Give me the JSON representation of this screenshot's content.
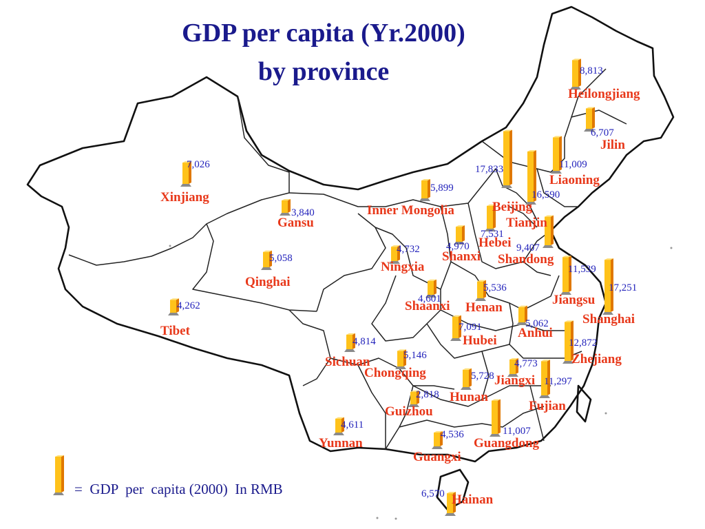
{
  "title_line1": "GDP per capita (Yr.2000)",
  "title_line2": "by province",
  "legend_text": "=  GDP  per  capita (2000)  In RMB",
  "colors": {
    "title": "#1a1a8c",
    "province_label": "#e8381a",
    "value_label": "#2222bb",
    "bar_light": "#ffc21a",
    "bar_dark": "#e07800",
    "border": "#111111"
  },
  "provinces": [
    {
      "key": "heilongjiang",
      "name": "Heilongjiang",
      "value": "8,813"
    },
    {
      "key": "jilin",
      "name": "Jilin",
      "value": "6,707"
    },
    {
      "key": "liaoning",
      "name": "Liaoning",
      "value": "11,009"
    },
    {
      "key": "beijing",
      "name": "Beijing",
      "value": "17,833"
    },
    {
      "key": "tianjin",
      "name": "Tianjin",
      "value": "16,590"
    },
    {
      "key": "hebei",
      "name": "Hebei",
      "value": "7,531"
    },
    {
      "key": "shanxi",
      "name": "Shanxi",
      "value": "4,970"
    },
    {
      "key": "shandong",
      "name": "Shandong",
      "value": "9,407"
    },
    {
      "key": "inner-mongolia",
      "name": "Inner Mongolia",
      "value": "5,899"
    },
    {
      "key": "xinjiang",
      "name": "Xinjiang",
      "value": "7,026"
    },
    {
      "key": "gansu",
      "name": "Gansu",
      "value": "3,840"
    },
    {
      "key": "ningxia",
      "name": "Ningxia",
      "value": "4,732"
    },
    {
      "key": "qinghai",
      "name": "Qinghai",
      "value": "5,058"
    },
    {
      "key": "shaanxi",
      "name": "Shaanxi",
      "value": "4,601"
    },
    {
      "key": "henan",
      "name": "Henan",
      "value": "5,536"
    },
    {
      "key": "jiangsu",
      "name": "Jiangsu",
      "value": "11,539"
    },
    {
      "key": "shanghai",
      "name": "Shanghai",
      "value": "17,251"
    },
    {
      "key": "tibet",
      "name": "Tibet",
      "value": "4,262"
    },
    {
      "key": "anhui",
      "name": "Anhui",
      "value": "5,062"
    },
    {
      "key": "hubei",
      "name": "Hubei",
      "value": "7,091"
    },
    {
      "key": "zhejiang",
      "name": "Zhejiang",
      "value": "12,872"
    },
    {
      "key": "sichuan",
      "name": "Sichuan",
      "value": "4,814"
    },
    {
      "key": "chongqing",
      "name": "Chongqing",
      "value": "5,146"
    },
    {
      "key": "jiangxi",
      "name": "Jiangxi",
      "value": "4,773"
    },
    {
      "key": "hunan",
      "name": "Hunan",
      "value": "5,728"
    },
    {
      "key": "fujian",
      "name": "Fujian",
      "value": "11,297"
    },
    {
      "key": "guizhou",
      "name": "Guizhou",
      "value": "2,818"
    },
    {
      "key": "yunnan",
      "name": "Yunnan",
      "value": "4,611"
    },
    {
      "key": "guangdong",
      "name": "Guangdong",
      "value": "11,007"
    },
    {
      "key": "guangxi",
      "name": "Guangxi",
      "value": "4,536"
    },
    {
      "key": "hainan",
      "name": "Hainan",
      "value": "6,570"
    }
  ]
}
